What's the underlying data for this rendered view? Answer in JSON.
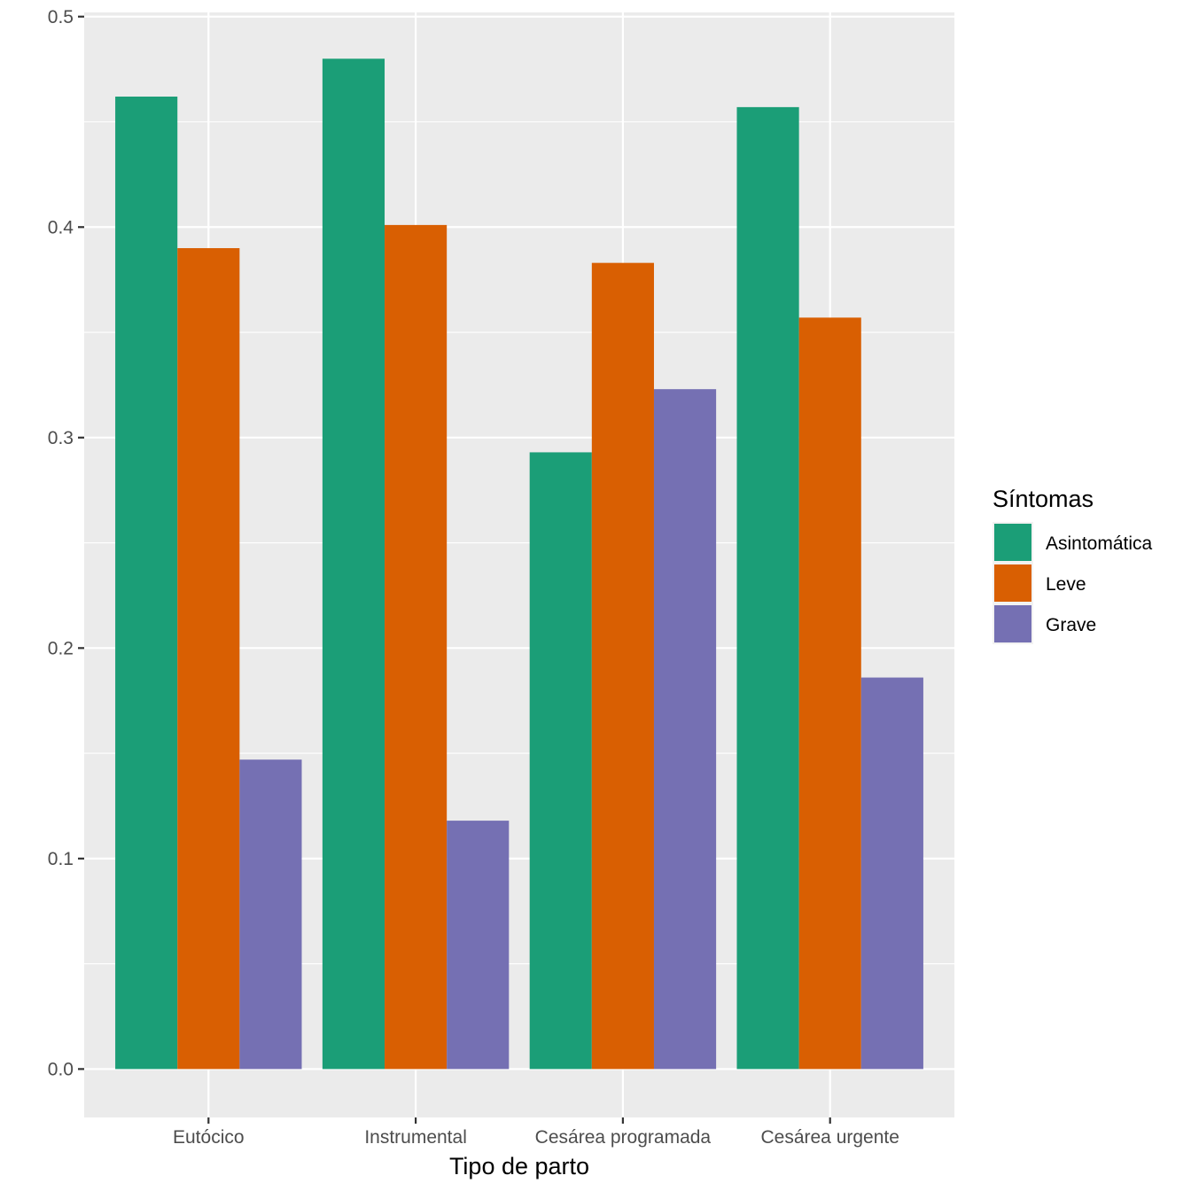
{
  "chart_data": {
    "type": "bar",
    "categories": [
      "Eutócico",
      "Instrumental",
      "Cesárea programada",
      "Cesárea urgente"
    ],
    "series": [
      {
        "name": "Asintomática",
        "color": "#1B9E77",
        "values": [
          0.462,
          0.48,
          0.293,
          0.457
        ]
      },
      {
        "name": "Leve",
        "color": "#D95F02",
        "values": [
          0.39,
          0.401,
          0.383,
          0.357
        ]
      },
      {
        "name": "Grave",
        "color": "#7570B3",
        "values": [
          0.147,
          0.118,
          0.323,
          0.186
        ]
      }
    ],
    "title": "",
    "xlabel": "Tipo de parto",
    "ylabel": "",
    "ylim": [
      -0.023,
      0.502
    ],
    "yticks": [
      0.0,
      0.1,
      0.2,
      0.3,
      0.4,
      0.5
    ],
    "ytick_labels": [
      "0.0",
      "0.1",
      "0.2",
      "0.3",
      "0.4",
      "0.5"
    ],
    "legend": {
      "title": "Síntomas",
      "position": "right"
    },
    "grid": true,
    "panel_background": "#EBEBEB"
  }
}
